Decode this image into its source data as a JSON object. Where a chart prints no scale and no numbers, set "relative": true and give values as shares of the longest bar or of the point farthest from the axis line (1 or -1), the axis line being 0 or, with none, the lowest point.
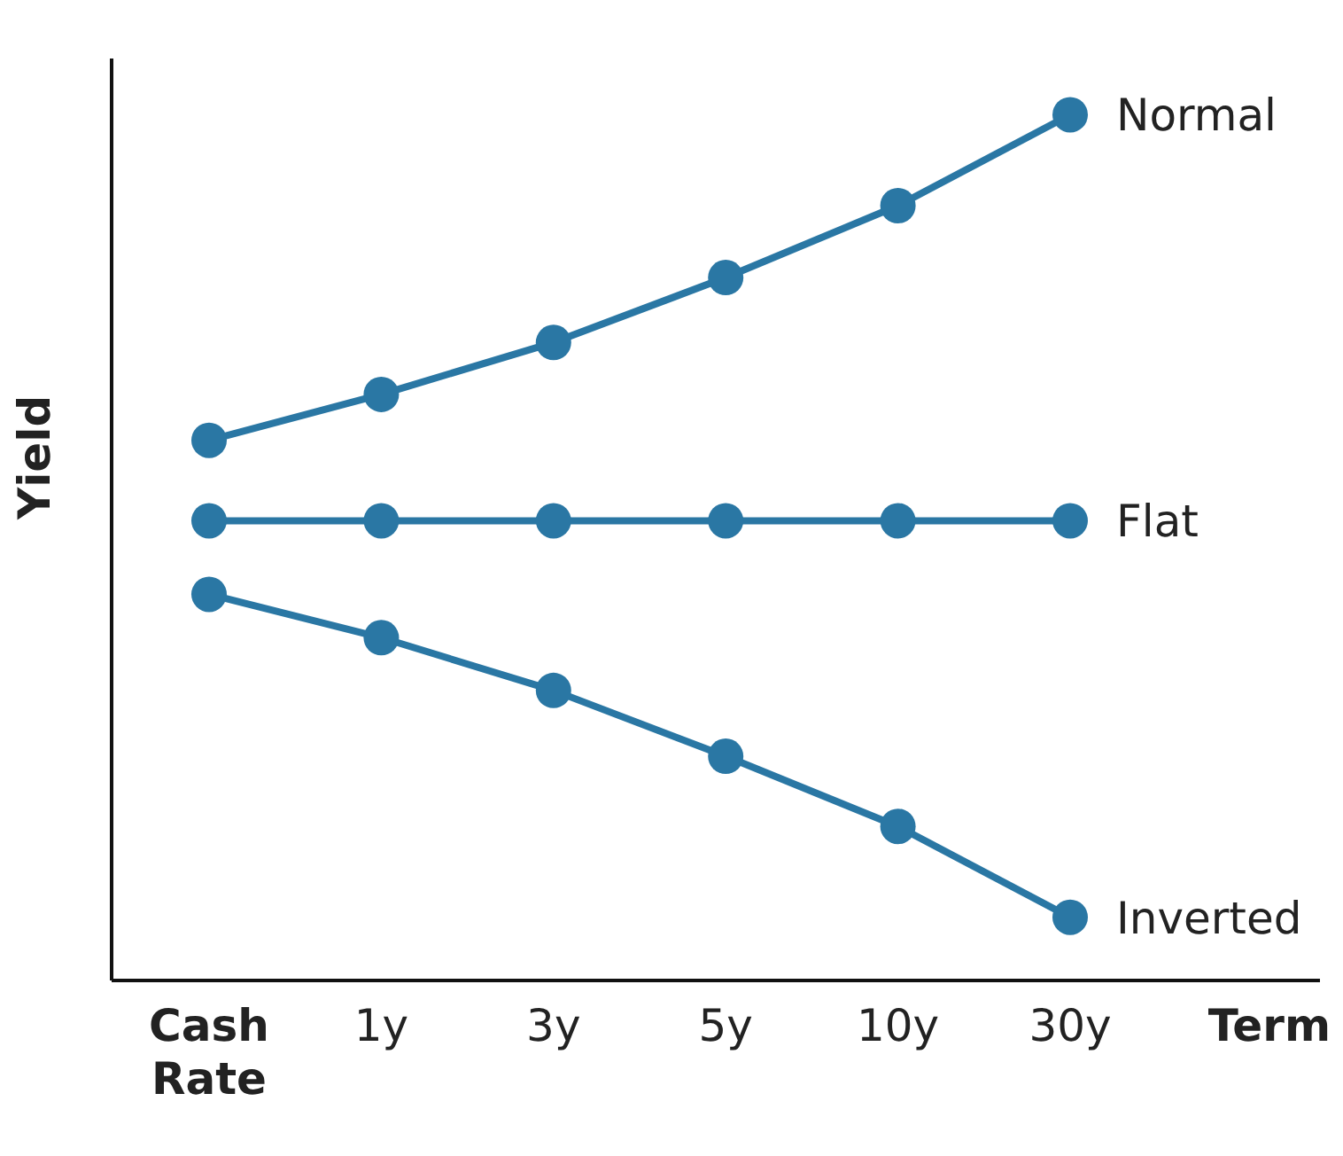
{
  "chart_data": {
    "type": "line",
    "xlabel": "Term",
    "ylabel": "Yield",
    "relative": true,
    "marker": "circle",
    "line_style": "solid",
    "categories": [
      "Cash Rate",
      "1y",
      "3y",
      "5y",
      "10y",
      "30y"
    ],
    "series": [
      {
        "name": "Normal",
        "color": "#2a77a4",
        "values": [
          0.624,
          0.677,
          0.737,
          0.812,
          0.895,
          1
        ]
      },
      {
        "name": "Flat",
        "color": "#2a77a4",
        "values": [
          0.531,
          0.531,
          0.531,
          0.531,
          0.531,
          0.531
        ]
      },
      {
        "name": "Inverted",
        "color": "#2a77a4",
        "values": [
          0.446,
          0.396,
          0.335,
          0.259,
          0.178,
          0.073
        ]
      }
    ]
  }
}
